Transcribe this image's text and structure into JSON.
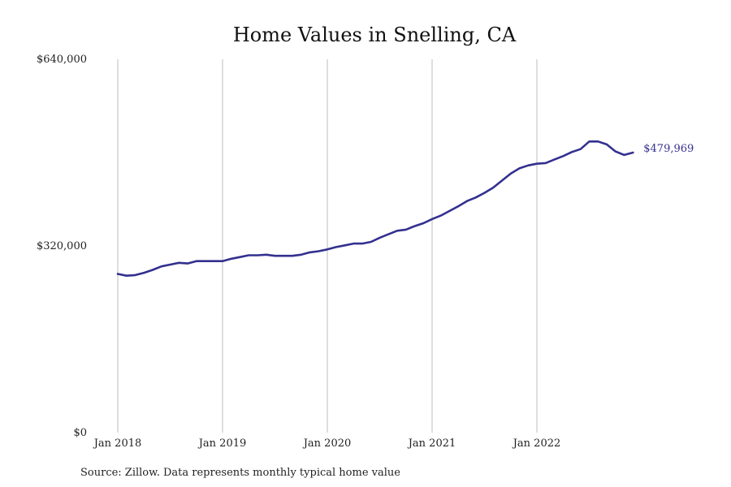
{
  "chart_data": {
    "type": "line",
    "title": "Home Values in Snelling, CA",
    "xlabel": "",
    "ylabel": "",
    "ylim": [
      0,
      640000
    ],
    "y_ticks": [
      {
        "value": 0,
        "label": "$0"
      },
      {
        "value": 320000,
        "label": "$320,000"
      },
      {
        "value": 640000,
        "label": "$640,000"
      }
    ],
    "x_ticks": [
      {
        "value": "2018-01",
        "label": "Jan 2018"
      },
      {
        "value": "2019-01",
        "label": "Jan 2019"
      },
      {
        "value": "2020-01",
        "label": "Jan 2020"
      },
      {
        "value": "2021-01",
        "label": "Jan 2021"
      },
      {
        "value": "2022-01",
        "label": "Jan 2022"
      }
    ],
    "grid": "vertical",
    "end_label": "$479,969",
    "series": [
      {
        "color": "#33308f",
        "x": [
          "2018-01",
          "2018-02",
          "2018-03",
          "2018-04",
          "2018-05",
          "2018-06",
          "2018-07",
          "2018-08",
          "2018-09",
          "2018-10",
          "2018-11",
          "2018-12",
          "2019-01",
          "2019-02",
          "2019-03",
          "2019-04",
          "2019-05",
          "2019-06",
          "2019-07",
          "2019-08",
          "2019-09",
          "2019-10",
          "2019-11",
          "2019-12",
          "2020-01",
          "2020-02",
          "2020-03",
          "2020-04",
          "2020-05",
          "2020-06",
          "2020-07",
          "2020-08",
          "2020-09",
          "2020-10",
          "2020-11",
          "2020-12",
          "2021-01",
          "2021-02",
          "2021-03",
          "2021-04",
          "2021-05",
          "2021-06",
          "2021-07",
          "2021-08",
          "2021-09",
          "2021-10",
          "2021-11",
          "2021-12",
          "2022-01",
          "2022-02",
          "2022-03",
          "2022-04",
          "2022-05",
          "2022-06",
          "2022-07",
          "2022-08",
          "2022-09",
          "2022-10",
          "2022-11",
          "2022-12"
        ],
        "values": [
          272000,
          269000,
          270000,
          274000,
          279000,
          285000,
          288000,
          291000,
          290000,
          294000,
          294000,
          294000,
          294000,
          298000,
          301000,
          304000,
          304000,
          305000,
          303000,
          303000,
          303000,
          305000,
          309000,
          311000,
          314000,
          318000,
          321000,
          324000,
          324000,
          327000,
          334000,
          340000,
          346000,
          348000,
          354000,
          359000,
          366000,
          372000,
          380000,
          388000,
          397000,
          403000,
          411000,
          420000,
          432000,
          444000,
          453000,
          458000,
          461000,
          462000,
          468000,
          474000,
          481000,
          486000,
          499000,
          499000,
          494000,
          482000,
          476000,
          479969
        ]
      }
    ]
  },
  "footer": {
    "source": "Source: Zillow. Data represents monthly typical home value"
  }
}
